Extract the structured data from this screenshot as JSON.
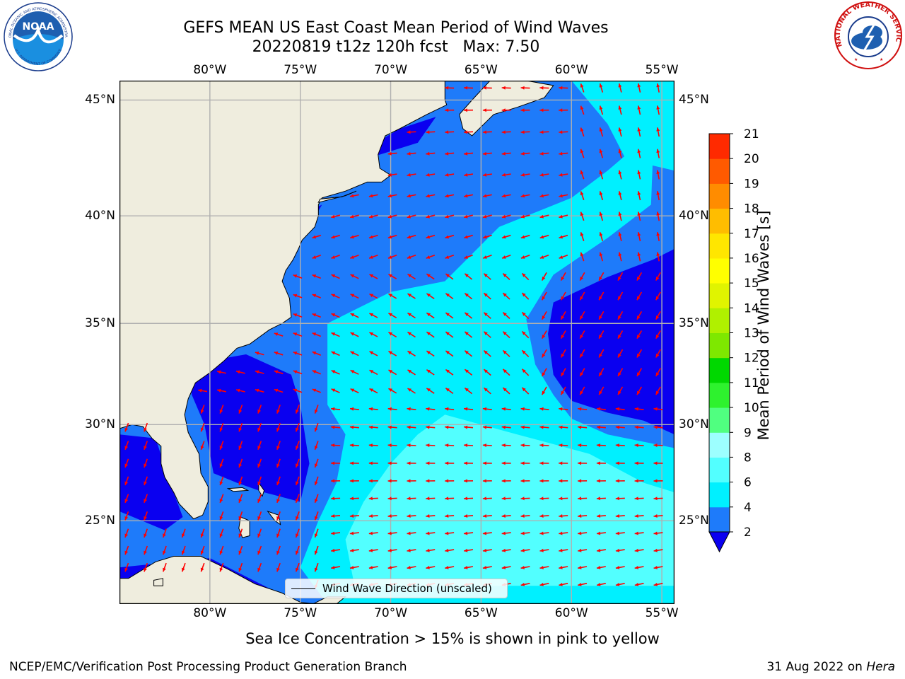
{
  "header": {
    "title_line1": "GEFS MEAN US East Coast Mean Period of Wind Waves",
    "title_line2": "20220819 t12z 120h fcst   Max: 7.50"
  },
  "logos": {
    "left": {
      "name": "noaa-logo",
      "text_top": "NATIONAL OCEANIC AND ATMOSPHERIC ADMINISTRATION",
      "text_bottom": "U.S. DEPARTMENT OF COMMERCE",
      "center": "NOAA"
    },
    "right": {
      "name": "nws-logo",
      "text": "NATIONAL WEATHER SERVICE"
    }
  },
  "map": {
    "lon_labels": [
      "80°W",
      "75°W",
      "70°W",
      "65°W",
      "60°W",
      "55°W"
    ],
    "lat_labels": [
      "45°N",
      "40°N",
      "35°N",
      "30°N",
      "25°N"
    ],
    "lon_values": [
      -80,
      -75,
      -70,
      -65,
      -60,
      -55
    ],
    "lat_values": [
      45,
      40,
      35,
      30,
      25
    ],
    "extent": {
      "lon_min": -85,
      "lon_max": -54.3,
      "lat_min": 20.5,
      "lat_max": 45.8
    },
    "colors": {
      "land": "#efedde",
      "coast": "#000000",
      "grid": "#b0b0b0",
      "arrow": "#ff0000"
    }
  },
  "colorbar": {
    "label": "Mean Period of Wind Waves [s]",
    "ticks": [
      "2",
      "4",
      "6",
      "8",
      "9",
      "10",
      "11",
      "12",
      "13",
      "14",
      "15",
      "16",
      "17",
      "18",
      "19",
      "20",
      "21"
    ],
    "bounds": [
      2,
      4,
      6,
      8,
      9,
      10,
      11,
      12,
      13,
      14,
      15,
      16,
      17,
      18,
      19,
      20,
      21
    ],
    "colors": [
      "#1e7bfa",
      "#00f0ff",
      "#52ffff",
      "#9dffff",
      "#50ff80",
      "#2ef22e",
      "#00d800",
      "#7ee800",
      "#b0f000",
      "#e0f400",
      "#ffff00",
      "#ffe600",
      "#ffbd00",
      "#ff8c00",
      "#ff5a00",
      "#ff2a00",
      "#ff0000"
    ],
    "under_color": "#0a00f0"
  },
  "legend": {
    "label": "Wind Wave Direction (unscaled)"
  },
  "notes": {
    "ice": "Sea Ice Concentration > 15% is shown in pink to yellow"
  },
  "footer": {
    "credit": "NCEP/EMC/Verification Post Processing Product Generation Branch",
    "date": "31 Aug 2022 on ",
    "machine": "Hera"
  }
}
